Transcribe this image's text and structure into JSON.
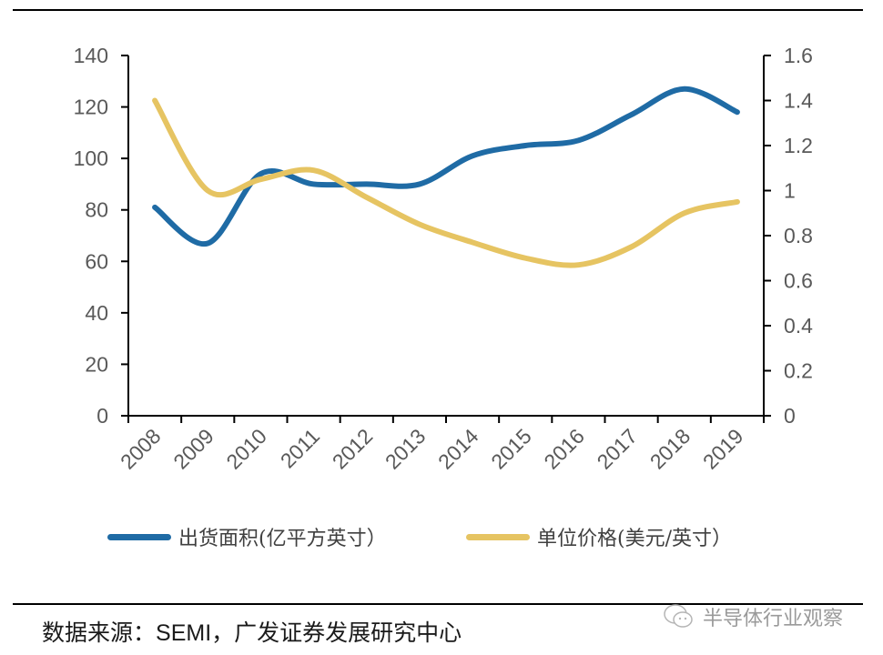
{
  "chart_data": {
    "type": "line",
    "title": "",
    "categories": [
      "2008",
      "2009",
      "2010",
      "2011",
      "2012",
      "2013",
      "2014",
      "2015",
      "2016",
      "2017",
      "2018",
      "2019"
    ],
    "series": [
      {
        "name": "出货面积(亿平方英寸）",
        "axis": "left",
        "color": "#1F6BA5",
        "values": [
          81,
          67,
          94,
          90,
          90,
          90,
          101,
          105,
          107,
          117,
          127,
          118
        ]
      },
      {
        "name": "单位价格(美元/英寸）",
        "axis": "right",
        "color": "#E6C462",
        "values": [
          1.4,
          1.0,
          1.05,
          1.09,
          0.97,
          0.85,
          0.77,
          0.7,
          0.67,
          0.75,
          0.9,
          0.95
        ]
      }
    ],
    "y_left": {
      "range": [
        0,
        140
      ],
      "ticks": [
        "0",
        "20",
        "40",
        "60",
        "80",
        "100",
        "120",
        "140"
      ]
    },
    "y_right": {
      "range": [
        0,
        1.6
      ],
      "ticks": [
        "0",
        "0.2",
        "0.4",
        "0.6",
        "0.8",
        "1",
        "1.2",
        "1.4",
        "1.6"
      ]
    },
    "xlabel": "",
    "ylabel_left": "",
    "ylabel_right": "",
    "grid": false,
    "smooth": true,
    "legend": "bottom"
  },
  "source": {
    "prefix": "数据来源：",
    "org": "SEMI",
    "suffix": "，广发证券发展研究中心"
  },
  "watermark": {
    "text": "半导体行业观察",
    "icon": "wechat-icon"
  }
}
